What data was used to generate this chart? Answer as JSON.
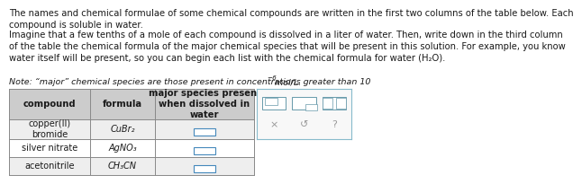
{
  "para1": "The names and chemical formulae of some chemical compounds are written in the first two columns of the table below. Each\ncompound is soluble in water.",
  "para2": "Imagine that a few tenths of a mole of each compound is dissolved in a liter of water. Then, write down in the third column\nof the table the chemical formula of the major chemical species that will be present in this solution. For example, you know\nwater itself will be present, so you can begin each list with the chemical formula for water (H₂O).",
  "note_main": "Note: “major” chemical species are those present in concentrations greater than 10",
  "note_sup": "−6",
  "note_end": " mol/L.",
  "col_headers": [
    "compound",
    "formula",
    "major species present\nwhen dissolved in\nwater"
  ],
  "rows": [
    [
      "copper(II)\nbromide",
      "CuBr₂"
    ],
    [
      "silver nitrate",
      "AgNO₃"
    ],
    [
      "acetonitrile",
      "CH₃CN"
    ]
  ],
  "bg_color": "#ffffff",
  "text_color": "#1a1a1a",
  "border_color": "#888888",
  "header_bg": "#cccccc",
  "row_bg": [
    "#eeeeee",
    "#ffffff",
    "#eeeeee"
  ],
  "widget_border": "#88bbcc",
  "widget_bg": "#f8f8f8",
  "icon_color": "#6699aa",
  "checkbox_color": "#4488bb",
  "fs_body": 7.2,
  "fs_note": 6.8,
  "fs_table_header": 7.2,
  "fs_table_body": 7.0
}
